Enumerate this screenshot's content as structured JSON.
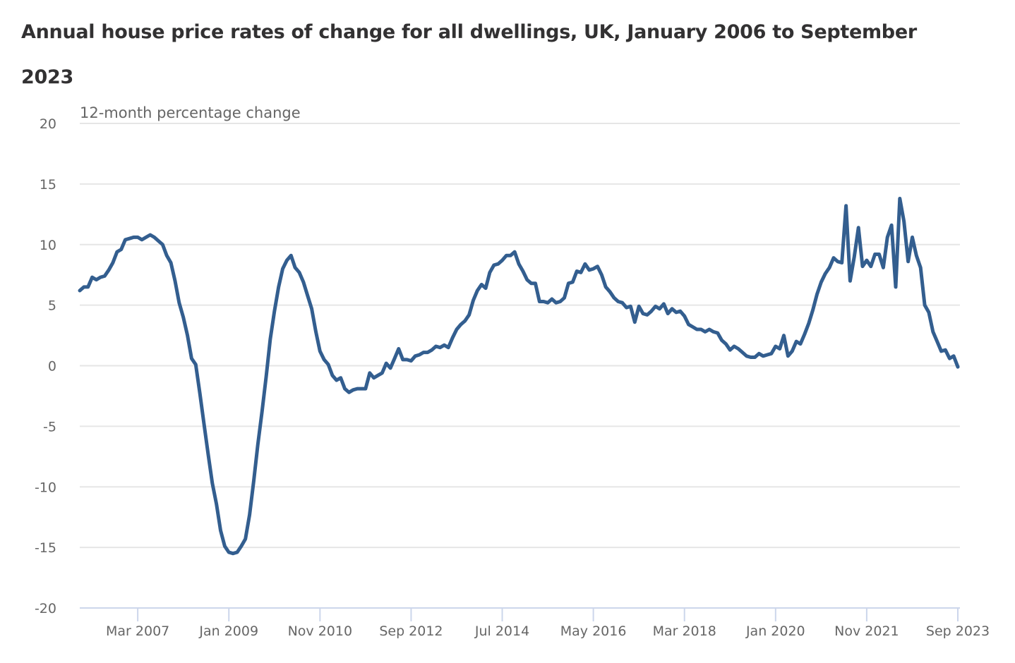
{
  "chart_data": {
    "type": "line",
    "title": "Annual house price rates of change for all dwellings, UK, January 2006 to September 2023",
    "xlabel": "",
    "ylabel": "12-month percentage change",
    "ylim": [
      -20,
      20
    ],
    "yticks": [
      20,
      15,
      10,
      5,
      0,
      -5,
      -10,
      -15,
      -20
    ],
    "grid": true,
    "x_start": "Jan 2006",
    "x_end": "Sep 2023",
    "x_interval": "monthly",
    "xtick_labels": [
      {
        "label": "Mar 2007",
        "month_index": 14
      },
      {
        "label": "Jan 2009",
        "month_index": 36
      },
      {
        "label": "Nov 2010",
        "month_index": 58
      },
      {
        "label": "Sep 2012",
        "month_index": 80
      },
      {
        "label": "Jul 2014",
        "month_index": 102
      },
      {
        "label": "May 2016",
        "month_index": 124
      },
      {
        "label": "Mar 2018",
        "month_index": 146
      },
      {
        "label": "Jan 2020",
        "month_index": 168
      },
      {
        "label": "Nov 2021",
        "month_index": 190
      },
      {
        "label": "Sep 2023",
        "month_index": 212
      }
    ],
    "series": [
      {
        "name": "All dwellings",
        "color": "#335e8f",
        "values": [
          6.2,
          6.5,
          6.5,
          7.3,
          7.1,
          7.3,
          7.4,
          7.9,
          8.5,
          9.4,
          9.6,
          10.4,
          10.5,
          10.6,
          10.6,
          10.4,
          10.6,
          10.8,
          10.6,
          10.3,
          10.0,
          9.1,
          8.5,
          7.0,
          5.2,
          4.0,
          2.5,
          0.6,
          0.1,
          -2.3,
          -4.8,
          -7.3,
          -9.7,
          -11.4,
          -13.6,
          -14.9,
          -15.4,
          -15.5,
          -15.4,
          -14.9,
          -14.3,
          -12.3,
          -9.5,
          -6.5,
          -3.8,
          -0.9,
          2.2,
          4.5,
          6.5,
          8.0,
          8.7,
          9.1,
          8.1,
          7.7,
          6.9,
          5.8,
          4.7,
          2.8,
          1.2,
          0.5,
          0.1,
          -0.8,
          -1.2,
          -1.0,
          -1.9,
          -2.2,
          -2.0,
          -1.9,
          -1.9,
          -1.9,
          -0.6,
          -1.0,
          -0.8,
          -0.6,
          0.2,
          -0.2,
          0.6,
          1.4,
          0.5,
          0.5,
          0.4,
          0.8,
          0.9,
          1.1,
          1.1,
          1.3,
          1.6,
          1.5,
          1.7,
          1.5,
          2.3,
          3.0,
          3.4,
          3.7,
          4.2,
          5.4,
          6.2,
          6.7,
          6.4,
          7.7,
          8.3,
          8.4,
          8.7,
          9.1,
          9.1,
          9.4,
          8.4,
          7.8,
          7.1,
          6.8,
          6.8,
          5.3,
          5.3,
          5.2,
          5.5,
          5.2,
          5.3,
          5.6,
          6.8,
          6.9,
          7.8,
          7.7,
          8.4,
          7.9,
          8.0,
          8.2,
          7.5,
          6.5,
          6.1,
          5.6,
          5.3,
          5.2,
          4.8,
          4.9,
          3.6,
          4.9,
          4.3,
          4.2,
          4.5,
          4.9,
          4.7,
          5.1,
          4.3,
          4.7,
          4.4,
          4.5,
          4.1,
          3.4,
          3.2,
          3.0,
          3.0,
          2.8,
          3.0,
          2.8,
          2.7,
          2.1,
          1.8,
          1.3,
          1.6,
          1.4,
          1.1,
          0.8,
          0.7,
          0.7,
          1.0,
          0.8,
          0.9,
          1.0,
          1.6,
          1.4,
          2.5,
          0.8,
          1.2,
          2.0,
          1.8,
          2.6,
          3.5,
          4.6,
          5.9,
          6.9,
          7.6,
          8.1,
          8.9,
          8.6,
          8.5,
          13.2,
          7.0,
          9.0,
          11.4,
          8.2,
          8.7,
          8.2,
          9.2,
          9.2,
          8.1,
          10.6,
          11.6,
          6.5,
          13.8,
          11.9,
          8.6,
          10.6,
          9.1,
          8.1,
          5.0,
          4.4,
          2.8,
          2.0,
          1.2,
          1.3,
          0.6,
          0.8,
          -0.1
        ]
      }
    ]
  },
  "colors": {
    "line": "#335e8f",
    "grid": "#e6e6e6",
    "axis": "#ccd6eb",
    "text": "#666666",
    "title": "#323132"
  }
}
